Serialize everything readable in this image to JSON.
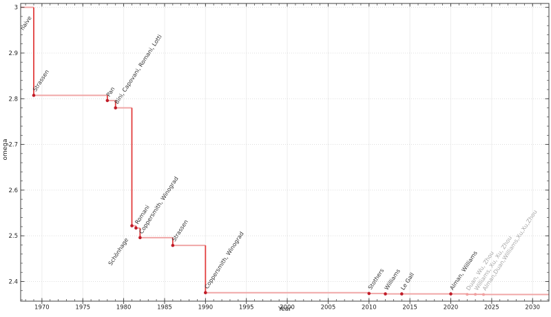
{
  "chart_data": {
    "type": "line",
    "step": "post",
    "title": "",
    "xlabel": "Year",
    "ylabel": "omega",
    "xlim": [
      1967.4,
      2032.0
    ],
    "ylim": [
      2.357,
      3.0085
    ],
    "x_ticks": [
      1970,
      1975,
      1980,
      1985,
      1990,
      1995,
      2000,
      2005,
      2010,
      2015,
      2020,
      2025,
      2030
    ],
    "x_minor_step": 1,
    "y_ticks": [
      2.4,
      2.5,
      2.6,
      2.7,
      2.8,
      2.9,
      3.0
    ],
    "y_tick_labels": [
      "2.4",
      "2.5",
      "2.6",
      "2.7",
      "2.8",
      "2.9",
      "3"
    ],
    "y_minor_step": 0.02,
    "grid": true,
    "legend": false,
    "baseline": {
      "label": "naive",
      "omega": 3.0,
      "label_year": 1969,
      "label_anchor": "end",
      "label_dx": -3,
      "label_dy": 15
    },
    "points": [
      {
        "year": 1969,
        "omega": 2.8074,
        "label": "Strassen",
        "muted": false
      },
      {
        "year": 1978,
        "omega": 2.796,
        "label": "Pan",
        "muted": false
      },
      {
        "year": 1979,
        "omega": 2.78,
        "label": "Bini, Capovani, Romani, Lotti",
        "muted": false
      },
      {
        "year": 1981,
        "omega": 2.522,
        "label": "Schönhage",
        "muted": false,
        "label_anchor": "end",
        "label_dx": -5,
        "label_dy": 20
      },
      {
        "year": 1981.5,
        "omega": 2.517,
        "label": "Romani",
        "muted": false
      },
      {
        "year": 1982,
        "omega": 2.496,
        "label": "Coppersmith, Winograd",
        "muted": false
      },
      {
        "year": 1986,
        "omega": 2.479,
        "label": "Strassen",
        "muted": false
      },
      {
        "year": 1990,
        "omega": 2.3755,
        "label": "Coppersmith, Winograd",
        "muted": false
      },
      {
        "year": 2010,
        "omega": 2.3737,
        "label": "Stothers",
        "muted": false
      },
      {
        "year": 2012,
        "omega": 2.3729,
        "label": "Williams",
        "muted": false
      },
      {
        "year": 2014,
        "omega": 2.3728639,
        "label": "Le Gall",
        "muted": false
      },
      {
        "year": 2020,
        "omega": 2.3728596,
        "label": "Alman, Williams",
        "muted": false
      },
      {
        "year": 2022,
        "omega": 2.37188,
        "label": "Duan, Wu, Zhou",
        "muted": true
      },
      {
        "year": 2023,
        "omega": 2.371866,
        "label": "Williams, Xu, Xu, Zhou",
        "muted": true
      },
      {
        "year": 2024,
        "omega": 2.371552,
        "label": "Alman,Duan,Williams,Xu,Xu,Zhou",
        "muted": true
      }
    ],
    "colors": {
      "line_horizontal": "#f0a6a6",
      "line_vertical": "#e23c3c",
      "marker": "#c01c28",
      "marker_muted": "#f0a0a0",
      "label": "#333333",
      "label_muted": "#a8a8a8",
      "grid_vertical": "#ededed",
      "grid_horizontal": "#dcdcdc",
      "axis": "#3c3c3c",
      "tick_label": "#1f1f1f"
    }
  }
}
